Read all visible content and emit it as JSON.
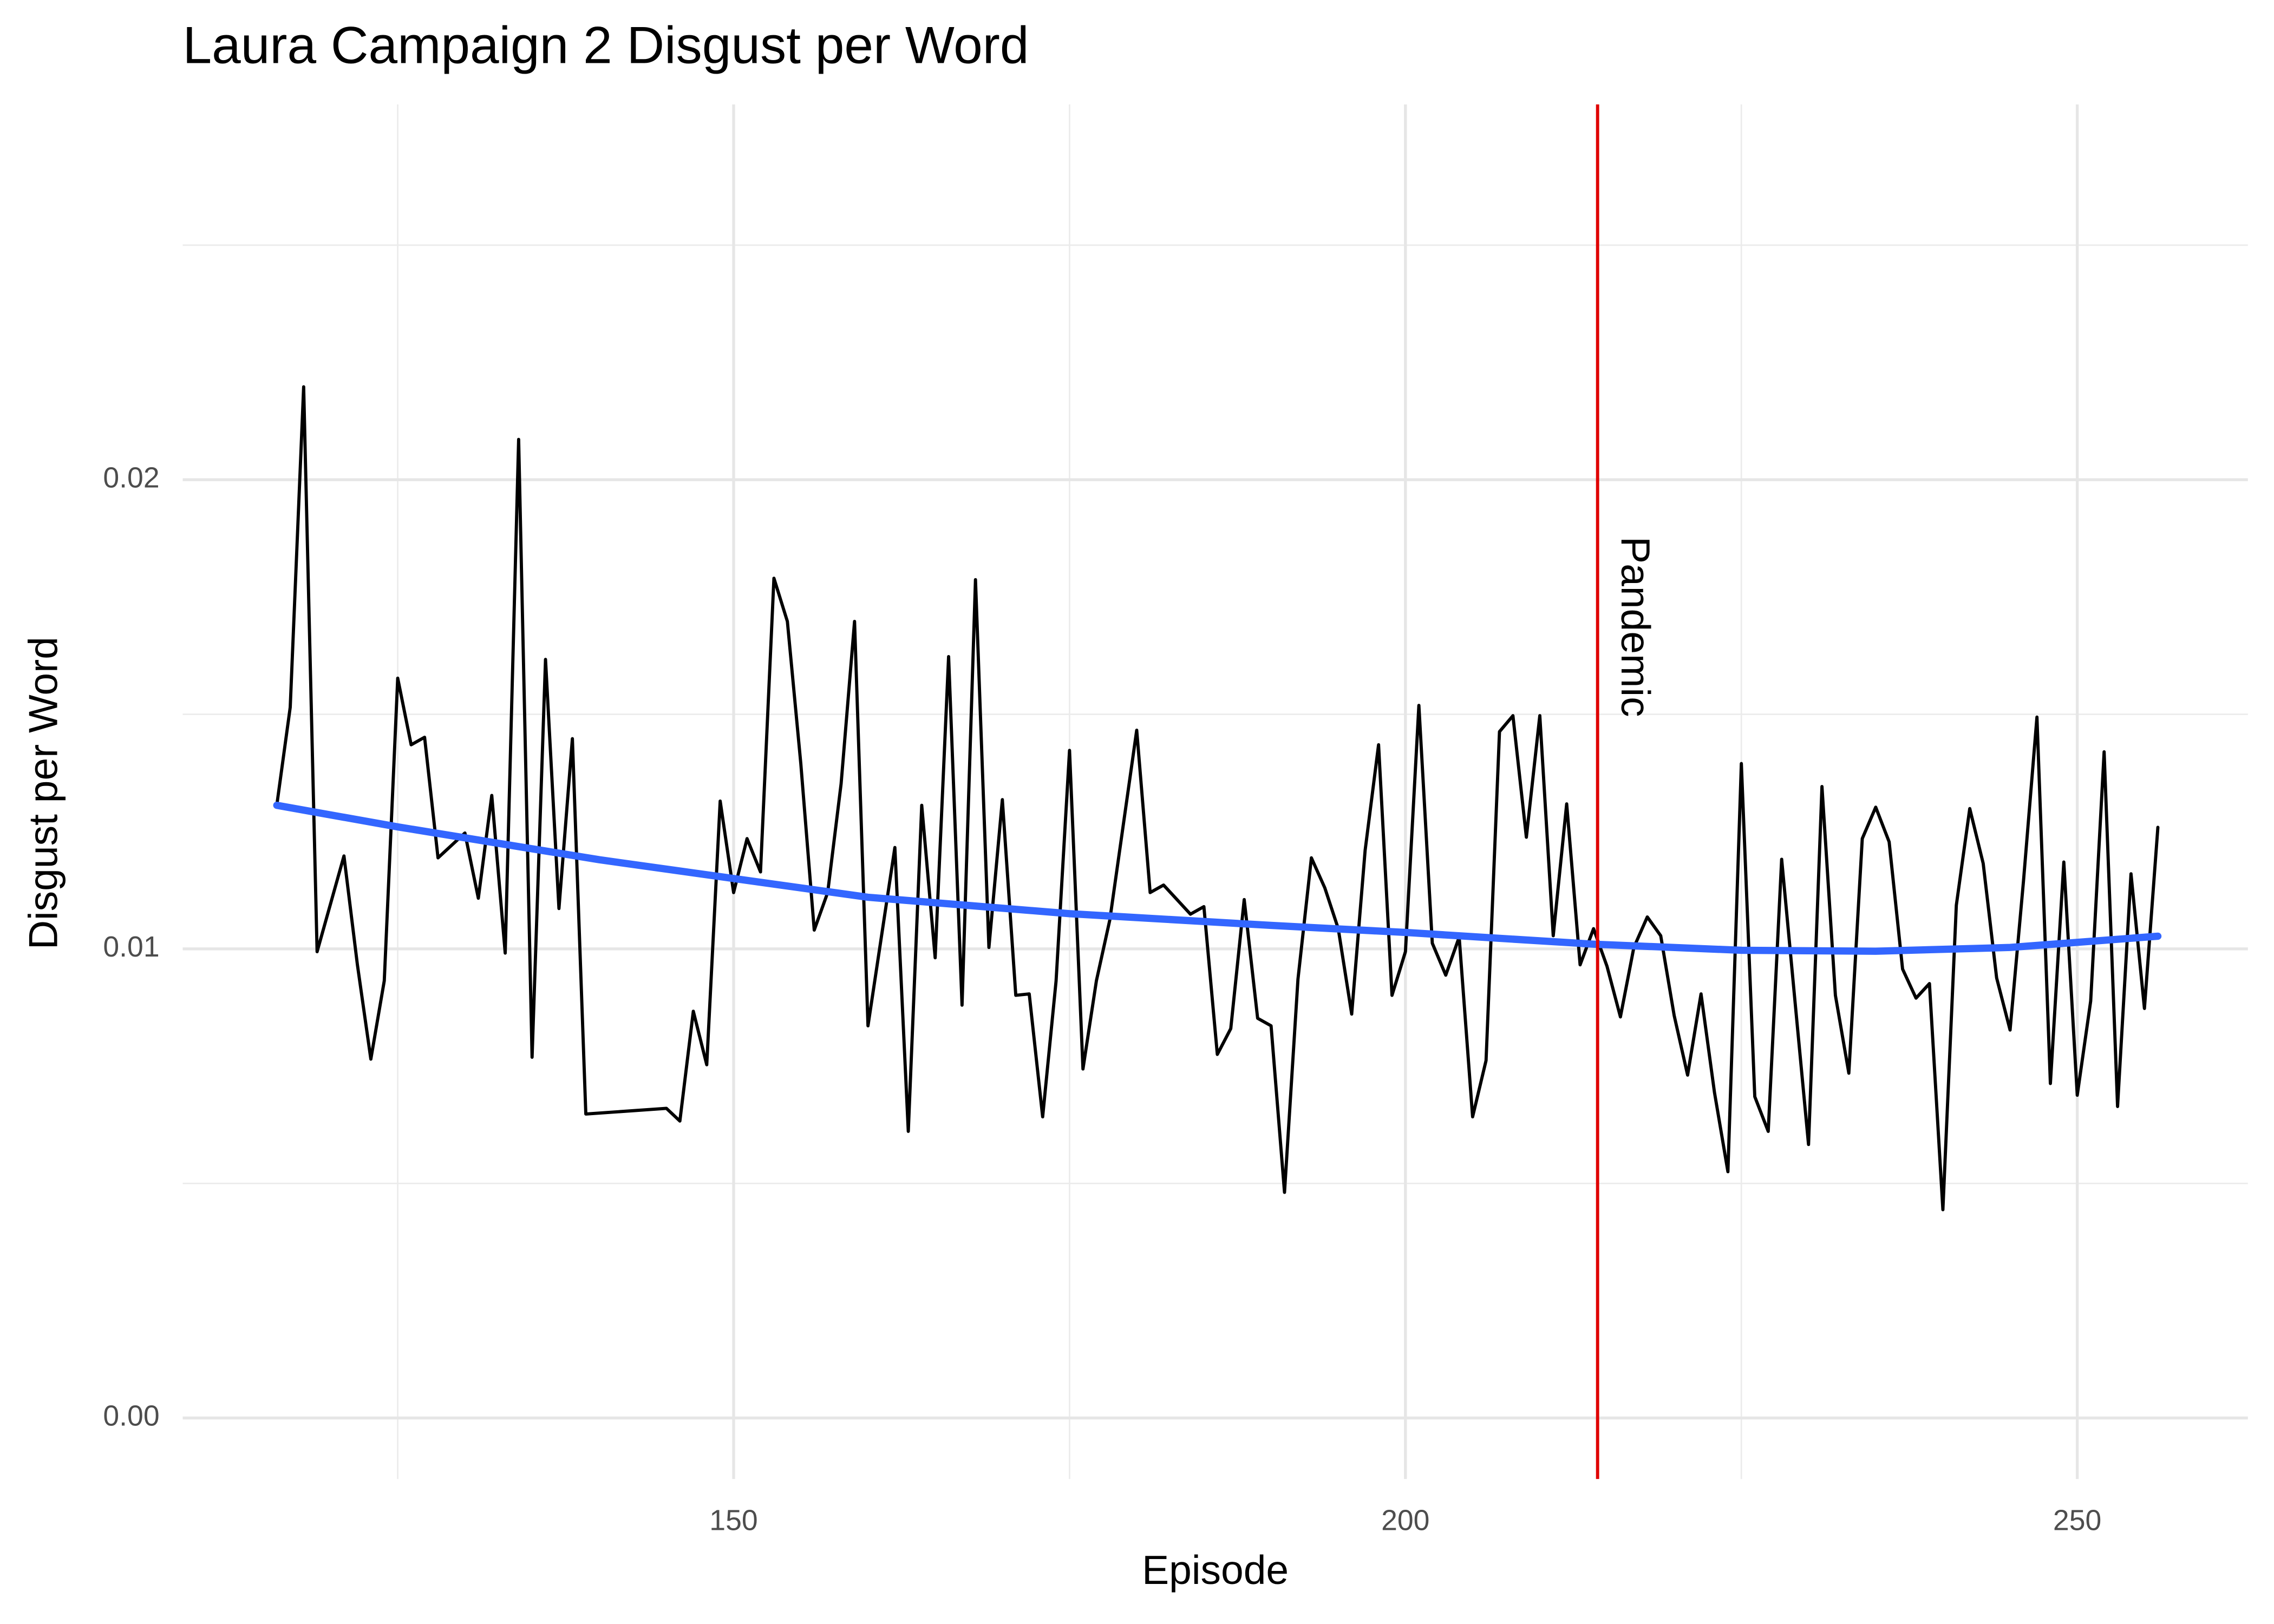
{
  "chart_data": {
    "type": "line",
    "title": "Laura Campaign 2 Disgust per Word",
    "x_label": "Episode",
    "y_label": "Disgust per Word",
    "xlim": [
      109,
      262.7
    ],
    "ylim": [
      -0.0013,
      0.028
    ],
    "xticks": [
      150,
      200,
      250
    ],
    "yticks": [
      {
        "value": 0,
        "label": "0.00"
      },
      0.01,
      0.02
    ],
    "xminor": [
      125,
      175,
      225
    ],
    "yminor": [
      0.005,
      0.015,
      0.025
    ],
    "grid": true,
    "series": [
      {
        "color": "#000000",
        "x": [
          116,
          117,
          118,
          119,
          121,
          122,
          123,
          124,
          125,
          126,
          127,
          128,
          130,
          131,
          132,
          133,
          134,
          135,
          136,
          137,
          138,
          139,
          145,
          146,
          147,
          148,
          149,
          150,
          151,
          152,
          153,
          154,
          155,
          156,
          157,
          158,
          159,
          160,
          162,
          163,
          164,
          165,
          166,
          167,
          168,
          169,
          170,
          171,
          172,
          173,
          174,
          175,
          176,
          177,
          178,
          180,
          181,
          182,
          184,
          185,
          186,
          187,
          188,
          189,
          190,
          191,
          192,
          193,
          194,
          195,
          196,
          197,
          198,
          199,
          200,
          201,
          202,
          203,
          204,
          205,
          206,
          207,
          208,
          209,
          210,
          211,
          212,
          213,
          214,
          215,
          216,
          217,
          218,
          219,
          220,
          221,
          222,
          223,
          224,
          225,
          226,
          227,
          228,
          229,
          230,
          231,
          232,
          233,
          234,
          235,
          236,
          237,
          238,
          239,
          240,
          241,
          242,
          243,
          244,
          245,
          246,
          247,
          248,
          249,
          250,
          251,
          252,
          253,
          254,
          255,
          256
        ],
        "values": [
          0.01306,
          0.01515,
          0.02198,
          0.00994,
          0.01198,
          0.00966,
          0.00765,
          0.00932,
          0.01577,
          0.01435,
          0.01451,
          0.01194,
          0.01247,
          0.01108,
          0.01327,
          0.00991,
          0.02086,
          0.00769,
          0.01617,
          0.01086,
          0.01448,
          0.00648,
          0.0066,
          0.00633,
          0.00867,
          0.00753,
          0.01315,
          0.0112,
          0.01235,
          0.01164,
          0.0179,
          0.01698,
          0.01395,
          0.0104,
          0.0112,
          0.01352,
          0.01698,
          0.00836,
          0.01216,
          0.00611,
          0.01306,
          0.00981,
          0.01623,
          0.0088,
          0.01787,
          0.01003,
          0.01318,
          0.00901,
          0.00904,
          0.00642,
          0.00932,
          0.01423,
          0.00744,
          0.00932,
          0.01062,
          0.01466,
          0.0112,
          0.01136,
          0.01074,
          0.0109,
          0.00775,
          0.0083,
          0.01105,
          0.00852,
          0.00836,
          0.00481,
          0.00935,
          0.01194,
          0.0113,
          0.01043,
          0.00861,
          0.0121,
          0.01435,
          0.00901,
          0.00994,
          0.01519,
          0.01012,
          0.00944,
          0.01025,
          0.00642,
          0.00762,
          0.01463,
          0.01497,
          0.01238,
          0.01497,
          0.01028,
          0.01309,
          0.00966,
          0.01043,
          0.00963,
          0.00855,
          0.01003,
          0.01068,
          0.01028,
          0.00858,
          0.00731,
          0.00904,
          0.00694,
          0.00525,
          0.01395,
          0.00685,
          0.00611,
          0.01191,
          0.00886,
          0.00583,
          0.01346,
          0.00901,
          0.00735,
          0.01235,
          0.01302,
          0.01228,
          0.00957,
          0.00895,
          0.00926,
          0.00444,
          0.01093,
          0.01299,
          0.01182,
          0.00938,
          0.00827,
          0.01145,
          0.01494,
          0.00713,
          0.01185,
          0.00688,
          0.00889,
          0.0142,
          0.00664,
          0.0116,
          0.00873,
          0.01259
        ]
      },
      {
        "color": "#3366ff",
        "smooth": true,
        "x": [
          116,
          125,
          140,
          150,
          160,
          175,
          190,
          200,
          214,
          225,
          235,
          245,
          256
        ],
        "values": [
          0.01306,
          0.0126,
          0.0119,
          0.0115,
          0.0111,
          0.01075,
          0.0105,
          0.01035,
          0.0101,
          0.00997,
          0.00995,
          0.01003,
          0.01027
        ]
      }
    ],
    "vline": {
      "x": 214.3,
      "label": "Pandemic",
      "color": "#e00000"
    }
  }
}
